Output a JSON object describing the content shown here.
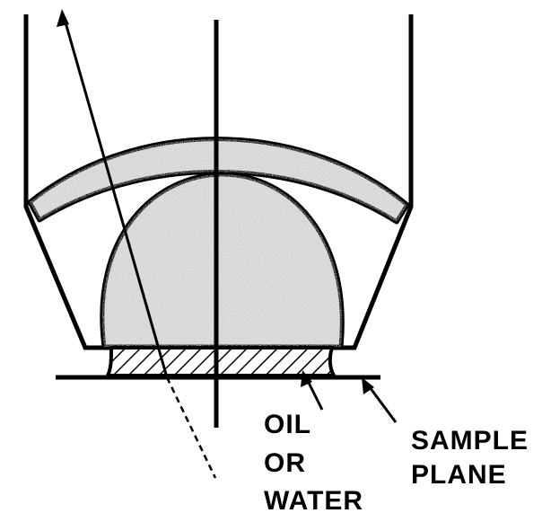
{
  "labels": {
    "oil": "OIL",
    "or": "OR",
    "water": "WATER",
    "sample": "SAMPLE",
    "plane": "PLANE"
  },
  "colors": {
    "line": "#000000",
    "lens_fill": "#d2d2d2",
    "background": "#ffffff"
  }
}
